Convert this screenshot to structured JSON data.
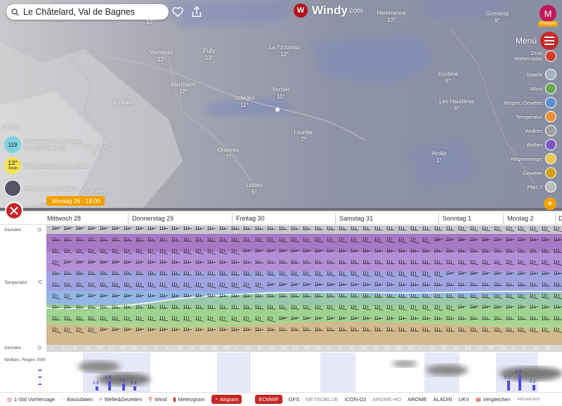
{
  "search": {
    "value": "Le Châtelard, Val de Bagnes"
  },
  "brand": {
    "name": "Windy",
    "suffix": ".com"
  },
  "user": {
    "initial": "M",
    "badge": "Premium"
  },
  "menu": {
    "label": "Menü"
  },
  "cities": [
    {
      "name": "Vernayaz",
      "temp": "12°"
    },
    {
      "name": "Fully",
      "temp": "13°"
    },
    {
      "name": "La Tzoumaz",
      "temp": "12°"
    },
    {
      "name": "Martinach",
      "temp": "12°"
    },
    {
      "name": "Finhaut",
      "temp": "9°"
    },
    {
      "name": "Volleges",
      "temp": "11°"
    },
    {
      "name": "Verbier",
      "temp": "11°"
    },
    {
      "name": "Lourtier",
      "temp": "7°"
    },
    {
      "name": "Orsieres",
      "temp": "7°"
    },
    {
      "name": "Liddes",
      "temp": "5°"
    },
    {
      "name": "Vallorcine",
      "temp": "6°"
    },
    {
      "name": "Argentiere",
      "temp": ""
    },
    {
      "name": "Heremence",
      "temp": "10°"
    },
    {
      "name": "Grimentz",
      "temp": "8°"
    },
    {
      "name": "Evolène",
      "temp": "5°"
    },
    {
      "name": "Les Haudères",
      "temp": "4°"
    },
    {
      "name": "Arolla",
      "temp": "1°"
    },
    {
      "name": "",
      "temp": "9°"
    },
    {
      "name": "",
      "temp": "12°"
    },
    {
      "name": "Cheval",
      "temp": ""
    }
  ],
  "layers": [
    {
      "label": "Zinal\nWetterradar",
      "color": "#d23c2c"
    },
    {
      "label": "Satellit",
      "color": "#a4b3c0"
    },
    {
      "label": "Wind",
      "color": "#6aa84f"
    },
    {
      "label": "Regen, Gewitter",
      "color": "#5a8fd0"
    },
    {
      "label": "Temperatur",
      "color": "#e69138"
    },
    {
      "label": "Wolken",
      "color": "#9e9e9e"
    },
    {
      "label": "Wellen",
      "color": "#7e57c2"
    },
    {
      "label": "Regenmenge",
      "color": "#e6c84f"
    },
    {
      "label": "Gewitter",
      "color": "#d4a017"
    },
    {
      "label": "PM2.5",
      "color": "#bcbcbc"
    }
  ],
  "side": {
    "air_quality": {
      "value": "119",
      "label": "Monitoring von Luftquali-\ntät und Strahlung"
    },
    "station": {
      "value": "13°",
      "sub": "7km/h",
      "label": "Wetterstationen in der Nähe"
    },
    "webcams": {
      "label": "Webcams in der Nähe"
    }
  },
  "timeline": {
    "current": "Montag 26 - 18:00"
  },
  "days": [
    "Mittwoch 28",
    "Donnerstag 29",
    "Freitag 30",
    "Samstag 31",
    "Sonntag 1",
    "Montag 2",
    "D"
  ],
  "axis": {
    "hours": "Stunden",
    "temperature": "Temperatur",
    "clouds": "Wolken, Regen",
    "temp_unit": "°C",
    "rain_unit": "mm"
  },
  "hours_row": [
    "2",
    "5",
    "8",
    "11",
    "14",
    "17",
    "20",
    "23",
    "2",
    "5",
    "8",
    "11",
    "14",
    "17",
    "20",
    "23",
    "2",
    "5",
    "8",
    "11",
    "14",
    "17",
    "20",
    "23",
    "2",
    "5",
    "8",
    "11",
    "14",
    "17",
    "20",
    "23",
    "2",
    "5",
    "8",
    "11",
    "14",
    "17",
    "20",
    "23",
    "2",
    "5",
    "8",
    "11"
  ],
  "rain_labels": [
    "0.3",
    "0.8",
    "0.4",
    "0.3",
    "0.2",
    "1.6",
    "0.2"
  ],
  "footer": {
    "step": "1-Std Vorhersage",
    "tabs": [
      "Basisdaten",
      "Welle&Gezeiten",
      "Wind",
      "Meteogram",
      "Airgram"
    ],
    "models": [
      "ECMWF",
      "GFS",
      "METEOBLUE",
      "ICON-D2",
      "AROME-HD",
      "AROME",
      "ALADIN",
      "UKV"
    ],
    "compare": "Vergleichen",
    "updated": "Aktualisiert:"
  }
}
